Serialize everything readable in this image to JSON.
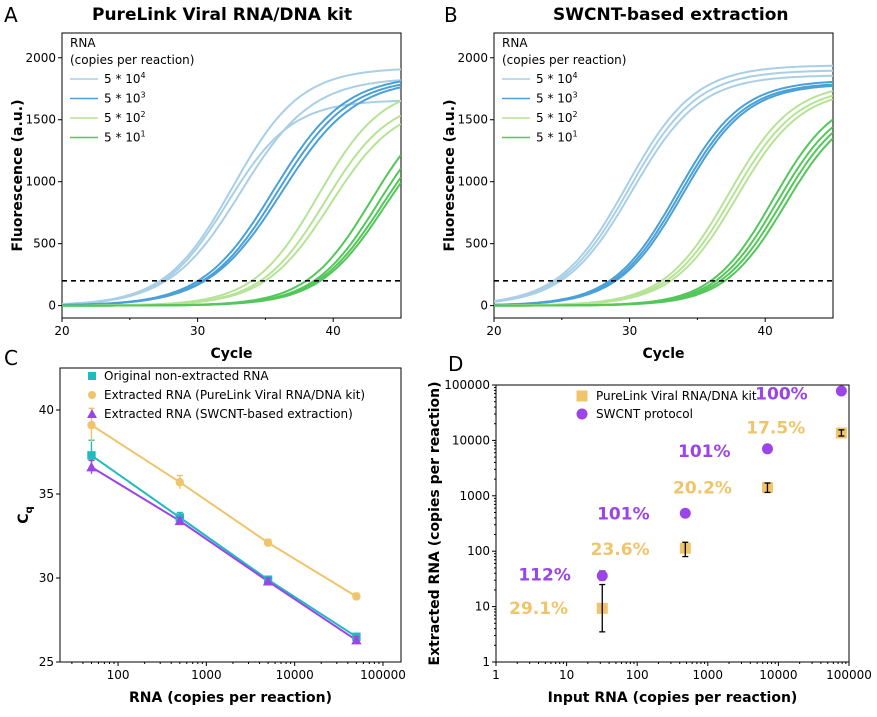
{
  "figure": {
    "panels": [
      {
        "letter": "A",
        "title": "PureLink Viral RNA/DNA kit"
      },
      {
        "letter": "B",
        "title": "SWCNT-based extraction"
      },
      {
        "letter": "C",
        "title": ""
      },
      {
        "letter": "D",
        "title": ""
      }
    ]
  },
  "chart_data": [
    {
      "type": "line",
      "panel": "A",
      "title": "PureLink Viral RNA/DNA kit",
      "xlabel": "Cycle",
      "ylabel": "Fluorescence (a.u.)",
      "xlim": [
        20,
        45
      ],
      "ylim": [
        -100,
        2200
      ],
      "xticks": [
        "20",
        "30",
        "40"
      ],
      "yticks": [
        "0",
        "500",
        "1000",
        "1500",
        "2000"
      ],
      "threshold": 200,
      "legend_title": [
        "RNA",
        "(copies per reaction)"
      ],
      "legend_position": "top-left",
      "series": [
        {
          "name": "5 * 10^4",
          "label_main": "5 * 10",
          "label_exp": "4",
          "color": "#a8cfe6",
          "curves": [
            {
              "ct": 32.6,
              "k": 0.4,
              "plateau": 1920
            },
            {
              "ct": 32.2,
              "k": 0.42,
              "plateau": 1660
            },
            {
              "ct": 33.2,
              "k": 0.38,
              "plateau": 1840
            }
          ]
        },
        {
          "name": "5 * 10^3",
          "label_main": "5 * 10",
          "label_exp": "3",
          "color": "#4aa0d8",
          "curves": [
            {
              "ct": 35.6,
              "k": 0.38,
              "plateau": 1860
            },
            {
              "ct": 35.9,
              "k": 0.38,
              "plateau": 1840
            },
            {
              "ct": 36.2,
              "k": 0.37,
              "plateau": 1830
            }
          ]
        },
        {
          "name": "5 * 10^2",
          "label_main": "5 * 10",
          "label_exp": "2",
          "color": "#b6e396",
          "curves": [
            {
              "ct": 38.9,
              "k": 0.42,
              "plateau": 1780
            },
            {
              "ct": 39.4,
              "k": 0.42,
              "plateau": 1680
            },
            {
              "ct": 39.8,
              "k": 0.41,
              "plateau": 1640
            }
          ]
        },
        {
          "name": "5 * 10^1",
          "label_main": "5 * 10",
          "label_exp": "1",
          "color": "#54c75a",
          "curves": [
            {
              "ct": 42.8,
              "k": 0.42,
              "plateau": 1700
            },
            {
              "ct": 43.3,
              "k": 0.42,
              "plateau": 1650
            },
            {
              "ct": 43.6,
              "k": 0.41,
              "plateau": 1620
            },
            {
              "ct": 43.8,
              "k": 0.41,
              "plateau": 1600
            }
          ]
        }
      ]
    },
    {
      "type": "line",
      "panel": "B",
      "title": "SWCNT-based extraction",
      "xlabel": "Cycle",
      "ylabel": "Fluorescence (a.u.)",
      "xlim": [
        20,
        45
      ],
      "ylim": [
        -100,
        2200
      ],
      "xticks": [
        "20",
        "30",
        "40"
      ],
      "yticks": [
        "0",
        "500",
        "1000",
        "1500",
        "2000"
      ],
      "threshold": 200,
      "legend_title": [
        "RNA",
        "(copies per reaction)"
      ],
      "legend_position": "top-left",
      "series": [
        {
          "name": "5 * 10^4",
          "label_main": "5 * 10",
          "label_exp": "4",
          "color": "#a8cfe6",
          "curves": [
            {
              "ct": 29.8,
              "k": 0.4,
              "plateau": 1940
            },
            {
              "ct": 30.0,
              "k": 0.4,
              "plateau": 1900
            },
            {
              "ct": 30.2,
              "k": 0.4,
              "plateau": 1860
            }
          ]
        },
        {
          "name": "5 * 10^3",
          "label_main": "5 * 10",
          "label_exp": "3",
          "color": "#4aa0d8",
          "curves": [
            {
              "ct": 33.5,
              "k": 0.42,
              "plateau": 1820
            },
            {
              "ct": 33.7,
              "k": 0.42,
              "plateau": 1800
            },
            {
              "ct": 33.9,
              "k": 0.42,
              "plateau": 1790
            }
          ]
        },
        {
          "name": "5 * 10^2",
          "label_main": "5 * 10",
          "label_exp": "2",
          "color": "#b6e396",
          "curves": [
            {
              "ct": 37.3,
              "k": 0.42,
              "plateau": 1800
            },
            {
              "ct": 37.6,
              "k": 0.42,
              "plateau": 1770
            },
            {
              "ct": 37.9,
              "k": 0.42,
              "plateau": 1750
            }
          ]
        },
        {
          "name": "5 * 10^1",
          "label_main": "5 * 10",
          "label_exp": "1",
          "color": "#54c75a",
          "curves": [
            {
              "ct": 40.6,
              "k": 0.44,
              "plateau": 1720
            },
            {
              "ct": 40.9,
              "k": 0.44,
              "plateau": 1680
            },
            {
              "ct": 41.2,
              "k": 0.44,
              "plateau": 1660
            },
            {
              "ct": 41.5,
              "k": 0.44,
              "plateau": 1640
            }
          ]
        }
      ]
    },
    {
      "type": "line",
      "panel": "C",
      "title": "",
      "xlabel": "RNA (copies per reaction)",
      "ylabel": "Cq",
      "ylabel_main": "C",
      "ylabel_sub": "q",
      "xscale": "log",
      "xlim": [
        22,
        160000
      ],
      "ylim": [
        25,
        42.5
      ],
      "xticks": [
        "100",
        "1000",
        "10000",
        "100000"
      ],
      "yticks": [
        "25",
        "30",
        "35",
        "40"
      ],
      "legend_position": "top-right",
      "series": [
        {
          "name": "Original non-extracted RNA",
          "color": "#1fbcbc",
          "marker": "square",
          "x": [
            50,
            500,
            5000,
            50000
          ],
          "y": [
            37.3,
            33.6,
            29.9,
            26.5
          ],
          "yerr": [
            0.9,
            0.3,
            0.2,
            0.2
          ]
        },
        {
          "name": "Extracted RNA (PureLink Viral RNA/DNA kit)",
          "color": "#f0c46a",
          "marker": "circle",
          "x": [
            50,
            500,
            5000,
            50000
          ],
          "y": [
            39.1,
            35.7,
            32.1,
            28.9
          ],
          "yerr": [
            1.0,
            0.4,
            0.2,
            0.2
          ]
        },
        {
          "name": "Extracted RNA (SWCNT-based extraction)",
          "color": "#9b45e8",
          "marker": "triangle",
          "x": [
            50,
            500,
            5000,
            50000
          ],
          "y": [
            36.6,
            33.4,
            29.8,
            26.3
          ],
          "yerr": [
            0.4,
            0.2,
            0.2,
            0.2
          ]
        }
      ]
    },
    {
      "type": "scatter",
      "panel": "D",
      "title": "",
      "xlabel": "Input RNA (copies per reaction)",
      "ylabel": "Extracted RNA (copies per reaction)",
      "xscale": "log",
      "yscale": "log",
      "xlim": [
        1,
        100000
      ],
      "ylim": [
        1,
        100000
      ],
      "xticks": [
        "1",
        "10",
        "100",
        "1000",
        "10000",
        "100000"
      ],
      "yticks": [
        "1",
        "10",
        "100",
        "1000",
        "10000",
        "100000"
      ],
      "legend_position": "top-center",
      "series": [
        {
          "name": "PureLink Viral RNA/DNA kit",
          "color": "#f0c46a",
          "marker": "square",
          "x": [
            32,
            480,
            7000,
            78000
          ],
          "y": [
            9.3,
            113,
            1410,
            13600
          ],
          "yerr_low": [
            3.5,
            80,
            1150,
            12000
          ],
          "yerr_high": [
            25,
            145,
            1700,
            15500
          ]
        },
        {
          "name": "SWCNT protocol",
          "color": "#9b45e8",
          "marker": "circle",
          "x": [
            32,
            480,
            7000,
            78000
          ],
          "y": [
            36,
            485,
            7050,
            78000
          ],
          "yerr_low": [
            30,
            420,
            6200,
            70000
          ],
          "yerr_high": [
            44,
            560,
            7900,
            86000
          ]
        }
      ],
      "annotations": [
        {
          "text": "29.1%",
          "series": "PureLink Viral RNA/DNA kit",
          "color": "#f0c46a",
          "at_x": 10.5,
          "at_y": 9.5
        },
        {
          "text": "23.6%",
          "series": "PureLink Viral RNA/DNA kit",
          "color": "#f0c46a",
          "at_x": 150,
          "at_y": 110
        },
        {
          "text": "20.2%",
          "series": "PureLink Viral RNA/DNA kit",
          "color": "#f0c46a",
          "at_x": 2200,
          "at_y": 1400
        },
        {
          "text": "17.5%",
          "series": "PureLink Viral RNA/DNA kit",
          "color": "#f0c46a",
          "at_x": 24000,
          "at_y": 17000
        },
        {
          "text": "112%",
          "series": "SWCNT protocol",
          "color": "#9b45e8",
          "at_x": 11.5,
          "at_y": 38
        },
        {
          "text": "101%",
          "series": "SWCNT protocol",
          "color": "#9b45e8",
          "at_x": 150,
          "at_y": 480
        },
        {
          "text": "101%",
          "series": "SWCNT protocol",
          "color": "#9b45e8",
          "at_x": 2100,
          "at_y": 6500
        },
        {
          "text": "100%",
          "series": "SWCNT protocol",
          "color": "#9b45e8",
          "at_x": 26000,
          "at_y": 70000
        }
      ]
    }
  ]
}
